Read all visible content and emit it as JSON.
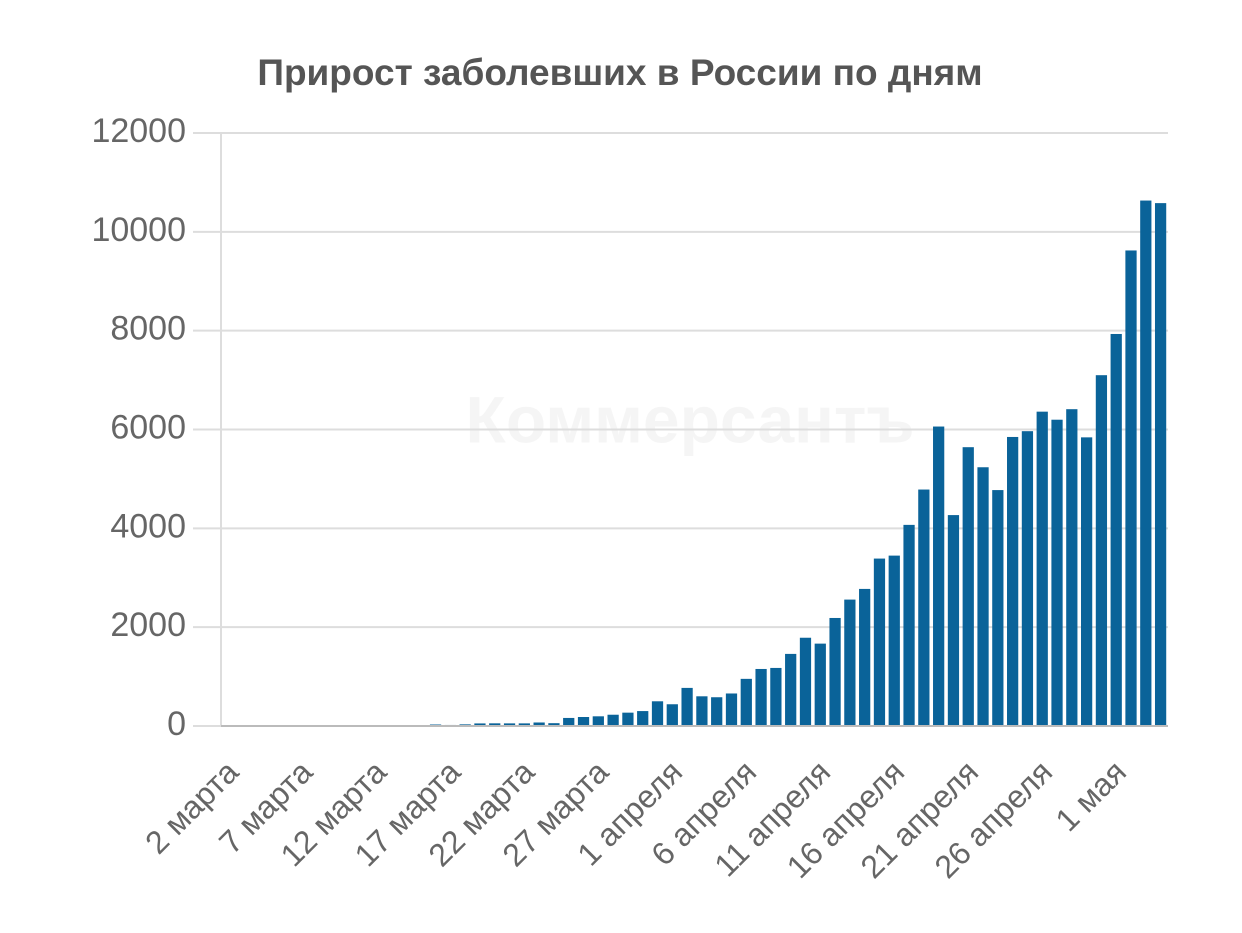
{
  "chart_data": {
    "type": "bar",
    "title": "Прирост заболевших в России по дням",
    "watermark": "Коммерсантъ",
    "categories": [
      "2 марта",
      null,
      null,
      null,
      null,
      "7 марта",
      null,
      null,
      null,
      null,
      "12 марта",
      null,
      null,
      null,
      null,
      "17 марта",
      null,
      null,
      null,
      null,
      "22 марта",
      null,
      null,
      null,
      null,
      "27 марта",
      null,
      null,
      null,
      null,
      "1 апреля",
      null,
      null,
      null,
      null,
      "6 апреля",
      null,
      null,
      null,
      null,
      "11 апреля",
      null,
      null,
      null,
      null,
      "16 апреля",
      null,
      null,
      null,
      null,
      "21 апреля",
      null,
      null,
      null,
      null,
      "26 апреля",
      null,
      null,
      null,
      null,
      "1 мая",
      null,
      null,
      null
    ],
    "values": [
      1,
      0,
      0,
      1,
      1,
      0,
      3,
      7,
      3,
      8,
      6,
      17,
      14,
      4,
      30,
      21,
      33,
      52,
      54,
      53,
      53,
      71,
      57,
      163,
      182,
      196,
      228,
      270,
      302,
      500,
      440,
      771,
      601,
      582,
      658,
      954,
      1154,
      1175,
      1459,
      1786,
      1667,
      2186,
      2558,
      2774,
      3388,
      3448,
      4070,
      4785,
      6060,
      4268,
      5642,
      5236,
      4774,
      5849,
      5966,
      6361,
      6198,
      6411,
      5841,
      7099,
      7933,
      9623,
      10633,
      10581
    ],
    "color": "#0a6399",
    "ylim": [
      0,
      12000
    ],
    "yticks": [
      0,
      2000,
      4000,
      6000,
      8000,
      10000,
      12000
    ],
    "grid": true
  }
}
